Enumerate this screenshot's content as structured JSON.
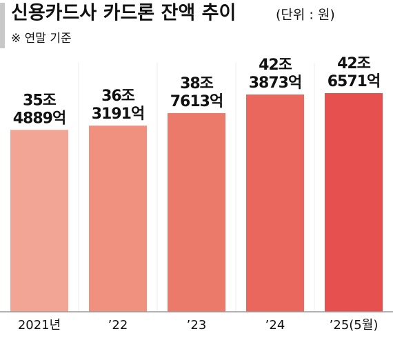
{
  "chart_data": {
    "type": "bar",
    "title": "신용카드사 카드론 잔액 추이",
    "subtitle": "(단위 : 원)",
    "note": "※ 연말 기준",
    "categories": [
      "2021년",
      "’22",
      "’23",
      "’24",
      "’25(5월)"
    ],
    "values": [
      354889,
      363191,
      387613,
      423873,
      426571
    ],
    "value_labels": [
      [
        "35조",
        "4889억"
      ],
      [
        "36조",
        "3191억"
      ],
      [
        "38조",
        "7613억"
      ],
      [
        "42조",
        "3873억"
      ],
      [
        "42조",
        "6571억"
      ]
    ],
    "colors": [
      "#f3a595",
      "#f0907f",
      "#ec7a6b",
      "#e9675d",
      "#e6504f"
    ]
  }
}
